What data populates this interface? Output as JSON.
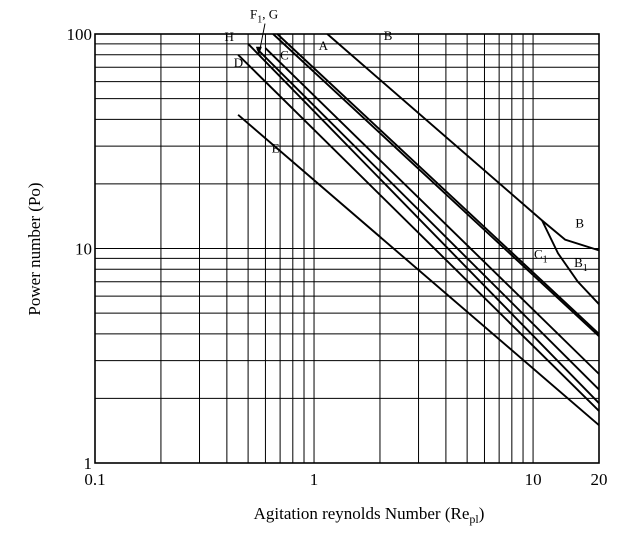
{
  "chart_data": {
    "type": "line",
    "title": "",
    "xlabel": "Agitation reynolds Number (Re",
    "xlabel_sub": "pl",
    "xlabel_close": ")",
    "ylabel": "Power number (Po)",
    "x_scale": "log",
    "y_scale": "log",
    "xlim": [
      0.1,
      20
    ],
    "ylim": [
      1,
      100
    ],
    "grid": true,
    "x_major_ticks": [
      0.1,
      1,
      10,
      20
    ],
    "x_tick_labels": [
      "0.1",
      "1",
      "10",
      "20"
    ],
    "y_major_ticks": [
      1,
      10,
      100
    ],
    "y_tick_labels": [
      "1",
      "10",
      "100"
    ],
    "x_grid": [
      0.2,
      0.3,
      0.4,
      0.5,
      0.6,
      0.7,
      0.8,
      0.9,
      1,
      2,
      3,
      4,
      5,
      6,
      7,
      8,
      9,
      10,
      20
    ],
    "y_grid": [
      2,
      3,
      4,
      5,
      6,
      7,
      8,
      9,
      10,
      20,
      30,
      40,
      50,
      60,
      70,
      80,
      90,
      100
    ],
    "series": [
      {
        "id": "B",
        "x": [
          1.15,
          11,
          14,
          20
        ],
        "y": [
          100,
          13.5,
          11,
          9.8
        ]
      },
      {
        "id": "B1",
        "x": [
          11,
          13,
          16,
          20
        ],
        "y": [
          13.5,
          9.5,
          7.0,
          5.5
        ]
      },
      {
        "id": "A",
        "x": [
          0.68,
          20
        ],
        "y": [
          100,
          4.0
        ]
      },
      {
        "id": "G",
        "x": [
          0.65,
          20
        ],
        "y": [
          100,
          3.9
        ]
      },
      {
        "id": "C",
        "x": [
          0.6,
          20
        ],
        "y": [
          86,
          2.6
        ]
      },
      {
        "id": "F",
        "x": [
          0.55,
          20
        ],
        "y": [
          85,
          2.2
        ]
      },
      {
        "id": "H",
        "x": [
          0.5,
          20
        ],
        "y": [
          90,
          1.9
        ]
      },
      {
        "id": "D",
        "x": [
          0.45,
          20
        ],
        "y": [
          80,
          1.75
        ]
      },
      {
        "id": "E",
        "x": [
          0.45,
          20
        ],
        "y": [
          42,
          1.5
        ]
      }
    ],
    "annotations": [
      {
        "id": "label-f1g",
        "text": "F",
        "sub": "1",
        "tail": ", G",
        "x": 0.51,
        "y": 118,
        "leader_to": [
          0.56,
          80
        ]
      },
      {
        "id": "label-h",
        "text": "H",
        "x": 0.39,
        "y": 93
      },
      {
        "id": "label-d",
        "text": "D",
        "x": 0.43,
        "y": 70
      },
      {
        "id": "label-c",
        "text": "C",
        "x": 0.7,
        "y": 76
      },
      {
        "id": "label-a",
        "text": "A",
        "x": 1.05,
        "y": 84
      },
      {
        "id": "label-b-top",
        "text": "B",
        "x": 2.08,
        "y": 94
      },
      {
        "id": "label-e",
        "text": "E",
        "x": 0.64,
        "y": 28
      },
      {
        "id": "label-b-right",
        "text": "B",
        "x": 15.6,
        "y": 12.5
      },
      {
        "id": "label-c1",
        "text": "C",
        "sub": "1",
        "x": 10.1,
        "y": 9.0
      },
      {
        "id": "label-b1",
        "text": "B",
        "sub": "1",
        "x": 15.4,
        "y": 8.2
      }
    ]
  }
}
